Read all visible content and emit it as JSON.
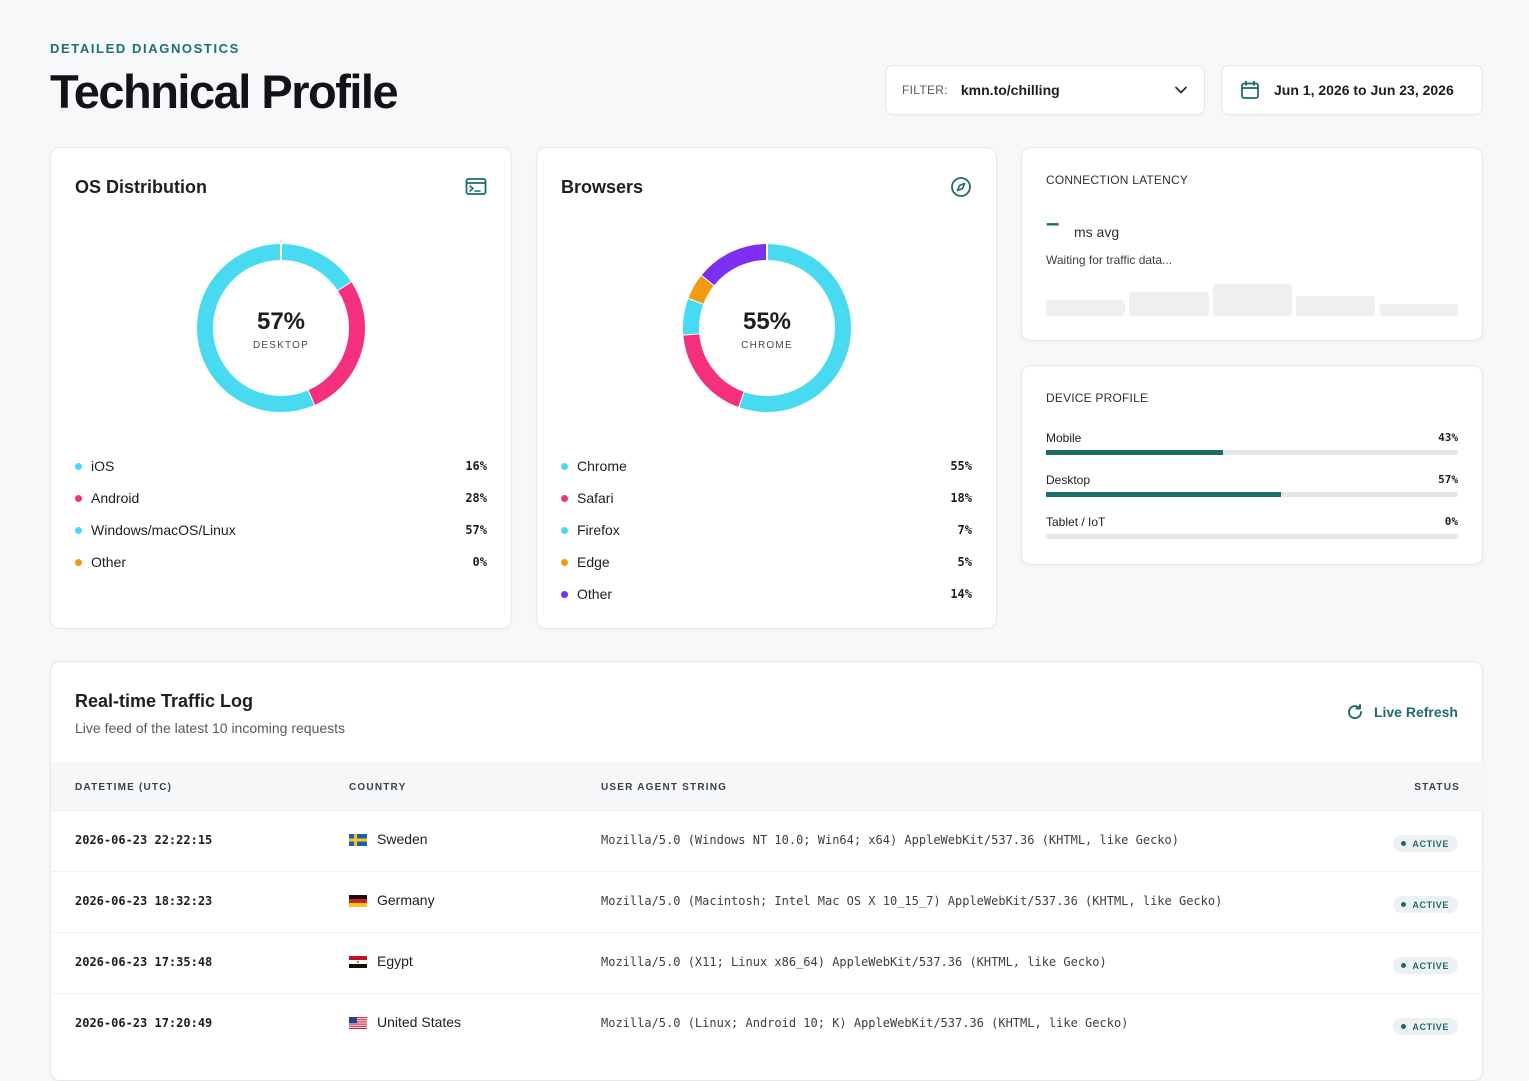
{
  "header": {
    "eyebrow": "DETAILED DIAGNOSTICS",
    "title": "Technical Profile",
    "filter_label": "FILTER:",
    "filter_value": "kmn.to/chilling",
    "date_range": "Jun 1, 2026 to Jun 23, 2026"
  },
  "os": {
    "title": "OS Distribution",
    "icon": "terminal-icon",
    "center_value": "57%",
    "center_label": "DESKTOP",
    "items": [
      {
        "label": "iOS",
        "value": "16%",
        "color": "#48daf0"
      },
      {
        "label": "Android",
        "value": "28%",
        "color": "#f5317f"
      },
      {
        "label": "Windows/macOS/Linux",
        "value": "57%",
        "color": "#48daf0"
      },
      {
        "label": "Other",
        "value": "0%",
        "color": "#f29a12"
      }
    ]
  },
  "browsers": {
    "title": "Browsers",
    "icon": "compass-icon",
    "center_value": "55%",
    "center_label": "CHROME",
    "items": [
      {
        "label": "Chrome",
        "value": "55%",
        "color": "#48daf0"
      },
      {
        "label": "Safari",
        "value": "18%",
        "color": "#f5317f"
      },
      {
        "label": "Firefox",
        "value": "7%",
        "color": "#48daf0"
      },
      {
        "label": "Edge",
        "value": "5%",
        "color": "#f29a12"
      },
      {
        "label": "Other",
        "value": "14%",
        "color": "#7c2ff0"
      }
    ]
  },
  "latency": {
    "title": "CONNECTION LATENCY",
    "value": "–",
    "unit": "ms avg",
    "status": "Waiting for traffic data..."
  },
  "device": {
    "title": "DEVICE PROFILE",
    "items": [
      {
        "label": "Mobile",
        "value": "43%",
        "fraction": 0.43
      },
      {
        "label": "Desktop",
        "value": "57%",
        "fraction": 0.57
      },
      {
        "label": "Tablet / IoT",
        "value": "0%",
        "fraction": 0
      }
    ]
  },
  "traffic": {
    "title": "Real-time Traffic Log",
    "subtitle": "Live feed of the latest 10 incoming requests",
    "refresh_label": "Live Refresh",
    "columns": [
      "DATETIME (UTC)",
      "COUNTRY",
      "USER AGENT STRING",
      "STATUS"
    ],
    "rows": [
      {
        "time": "2026-06-23 22:22:15",
        "country": "Sweden",
        "flag": "sweden-flag",
        "ua": "Mozilla/5.0 (Windows NT 10.0; Win64; x64) AppleWebKit/537.36 (KHTML, like Gecko)",
        "status": "ACTIVE"
      },
      {
        "time": "2026-06-23 18:32:23",
        "country": "Germany",
        "flag": "germany-flag",
        "ua": "Mozilla/5.0 (Macintosh; Intel Mac OS X 10_15_7) AppleWebKit/537.36 (KHTML, like Gecko)",
        "status": "ACTIVE"
      },
      {
        "time": "2026-06-23 17:35:48",
        "country": "Egypt",
        "flag": "egypt-flag",
        "ua": "Mozilla/5.0 (X11; Linux x86_64) AppleWebKit/537.36 (KHTML, like Gecko)",
        "status": "ACTIVE"
      },
      {
        "time": "2026-06-23 17:20:49",
        "country": "United States",
        "flag": "us-flag",
        "ua": "Mozilla/5.0 (Linux; Android 10; K) AppleWebKit/537.36 (KHTML, like Gecko)",
        "status": "ACTIVE"
      }
    ]
  }
}
